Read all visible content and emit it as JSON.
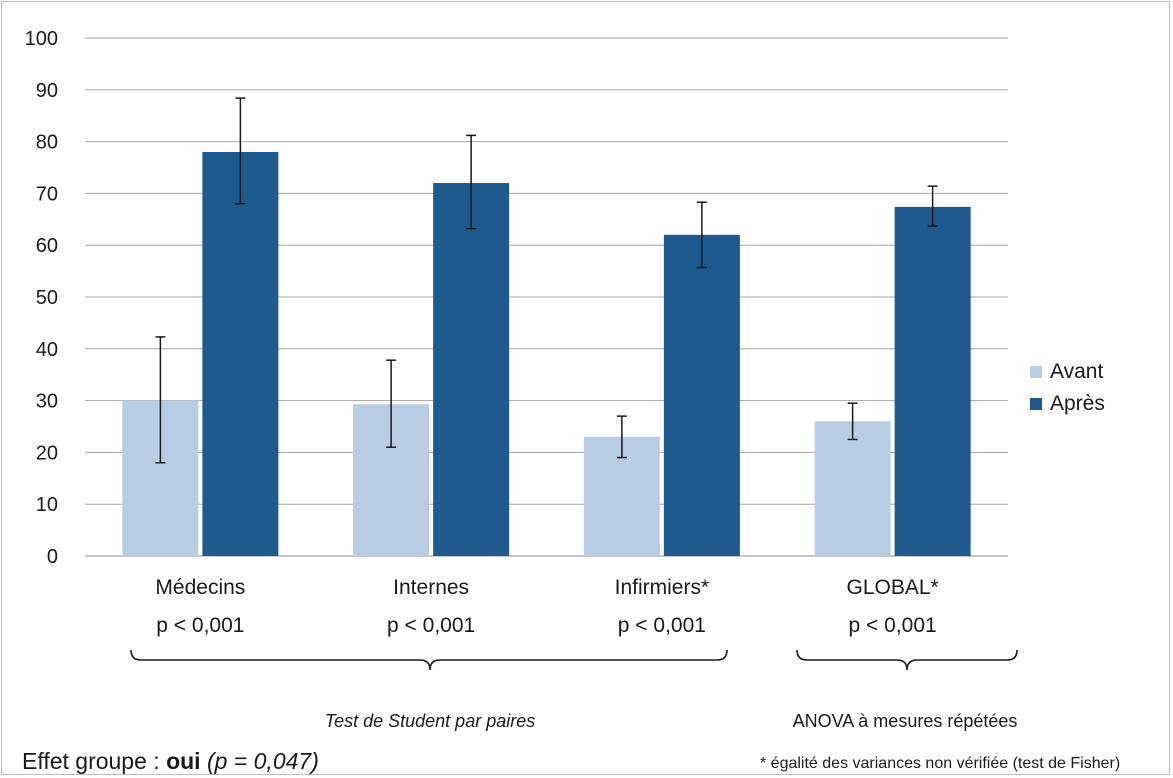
{
  "chart_data": {
    "type": "bar",
    "categories": [
      "Médecins",
      "Internes",
      "Infirmiers*",
      "GLOBAL*"
    ],
    "category_pvalues": [
      "p < 0,001",
      "p < 0,001",
      "p < 0,001",
      "p < 0,001"
    ],
    "series": [
      {
        "name": "Avant",
        "color": "#b8cce4",
        "values": [
          30,
          29.3,
          23,
          26
        ],
        "error_low": [
          18,
          21,
          19,
          22.5
        ],
        "error_high": [
          42.3,
          37.8,
          27,
          29.5
        ]
      },
      {
        "name": "Après",
        "color": "#1f5a8f",
        "values": [
          78,
          72,
          62,
          67.4
        ],
        "error_low": [
          68,
          63.2,
          55.7,
          63.7
        ],
        "error_high": [
          88.4,
          81.2,
          68.3,
          71.4
        ]
      }
    ],
    "ylim": [
      0,
      100
    ],
    "yticks": [
      0,
      10,
      20,
      30,
      40,
      50,
      60,
      70,
      80,
      90,
      100
    ],
    "grid": true,
    "legend_position": "right"
  },
  "annotations": {
    "student_label": "Test de Student par paires",
    "anova_label": "ANOVA à mesures répétées",
    "effect_prefix": "Effet groupe : ",
    "effect_bold": "oui",
    "effect_pvalue": "(p = 0,047)",
    "footnote": "* égalité des variances non vérifiée (test de Fisher)"
  }
}
